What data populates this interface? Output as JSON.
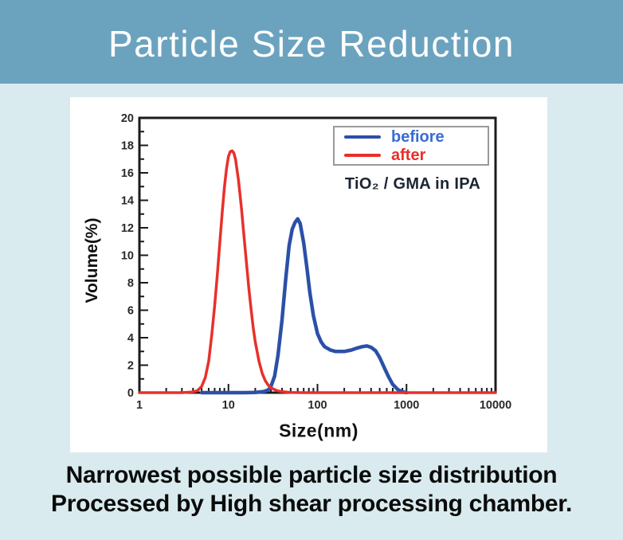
{
  "page": {
    "background": "#d9ebee"
  },
  "banner": {
    "title": "Particle Size Reduction",
    "background": "#6ba3bf",
    "text_color": "#ffffff"
  },
  "caption": {
    "line1": "Narrowest possible particle size distribution",
    "line2": "Processed by High shear processing chamber."
  },
  "chart_data": {
    "type": "line",
    "title": "",
    "xlabel": "Size(nm)",
    "ylabel": "Volume(%)",
    "x_scale": "log",
    "xlim": [
      1,
      10000
    ],
    "ylim": [
      0,
      20
    ],
    "x_ticks": [
      "1",
      "10",
      "100",
      "1000",
      "10000"
    ],
    "y_ticks": [
      0,
      2,
      4,
      6,
      8,
      10,
      12,
      14,
      16,
      18,
      20
    ],
    "grid": false,
    "frame_color": "#1b1b1b",
    "annotation": "TiO₂ / GMA in IPA",
    "legend": {
      "position": "top-right",
      "border_color": "#9a9a9a",
      "entries": [
        {
          "label": "befiore",
          "text_color": "#3a6bd4",
          "line_color": "#2b50a8"
        },
        {
          "label": "after",
          "text_color": "#e8302a",
          "line_color": "#e8302a"
        }
      ]
    },
    "series": [
      {
        "name": "befiore",
        "color": "#2b50a8",
        "peak_nm": 60,
        "peak_volume_pct": 12.6,
        "points": [
          [
            5,
            0
          ],
          [
            10,
            0
          ],
          [
            15,
            0
          ],
          [
            20,
            0.02
          ],
          [
            25,
            0.08
          ],
          [
            28,
            0.2
          ],
          [
            30,
            0.45
          ],
          [
            33,
            1.2
          ],
          [
            36,
            2.7
          ],
          [
            40,
            5.3
          ],
          [
            44,
            8.3
          ],
          [
            48,
            10.7
          ],
          [
            52,
            11.9
          ],
          [
            56,
            12.4
          ],
          [
            60,
            12.65
          ],
          [
            64,
            12.3
          ],
          [
            70,
            10.9
          ],
          [
            76,
            9.1
          ],
          [
            82,
            7.3
          ],
          [
            90,
            5.6
          ],
          [
            100,
            4.3
          ],
          [
            110,
            3.7
          ],
          [
            120,
            3.35
          ],
          [
            140,
            3.1
          ],
          [
            160,
            3.0
          ],
          [
            200,
            3.0
          ],
          [
            240,
            3.1
          ],
          [
            280,
            3.25
          ],
          [
            320,
            3.35
          ],
          [
            360,
            3.4
          ],
          [
            400,
            3.3
          ],
          [
            450,
            3.05
          ],
          [
            500,
            2.55
          ],
          [
            560,
            1.85
          ],
          [
            630,
            1.15
          ],
          [
            700,
            0.6
          ],
          [
            800,
            0.22
          ],
          [
            900,
            0.06
          ],
          [
            1000,
            0
          ]
        ]
      },
      {
        "name": "after",
        "color": "#e8302a",
        "peak_nm": 11,
        "peak_volume_pct": 17.6,
        "points": [
          [
            1,
            0
          ],
          [
            2,
            0
          ],
          [
            3,
            0
          ],
          [
            4,
            0.05
          ],
          [
            4.5,
            0.15
          ],
          [
            5,
            0.45
          ],
          [
            5.5,
            1.1
          ],
          [
            6,
            2.3
          ],
          [
            6.5,
            4.2
          ],
          [
            7,
            6.3
          ],
          [
            7.5,
            8.6
          ],
          [
            8,
            10.9
          ],
          [
            8.5,
            13.1
          ],
          [
            9,
            14.9
          ],
          [
            9.5,
            16.3
          ],
          [
            10,
            17.2
          ],
          [
            10.5,
            17.55
          ],
          [
            11,
            17.6
          ],
          [
            11.5,
            17.45
          ],
          [
            12,
            17.0
          ],
          [
            13,
            15.4
          ],
          [
            14,
            13.4
          ],
          [
            15,
            11.3
          ],
          [
            16,
            9.3
          ],
          [
            17,
            7.5
          ],
          [
            18,
            6.0
          ],
          [
            19,
            4.7
          ],
          [
            20,
            3.7
          ],
          [
            22,
            2.3
          ],
          [
            24,
            1.4
          ],
          [
            26,
            0.85
          ],
          [
            28,
            0.55
          ],
          [
            30,
            0.35
          ],
          [
            35,
            0.15
          ],
          [
            40,
            0.07
          ],
          [
            50,
            0.02
          ],
          [
            70,
            0
          ],
          [
            100,
            0
          ],
          [
            300,
            0
          ],
          [
            1000,
            0
          ],
          [
            3000,
            0
          ],
          [
            10000,
            0
          ]
        ]
      }
    ]
  }
}
